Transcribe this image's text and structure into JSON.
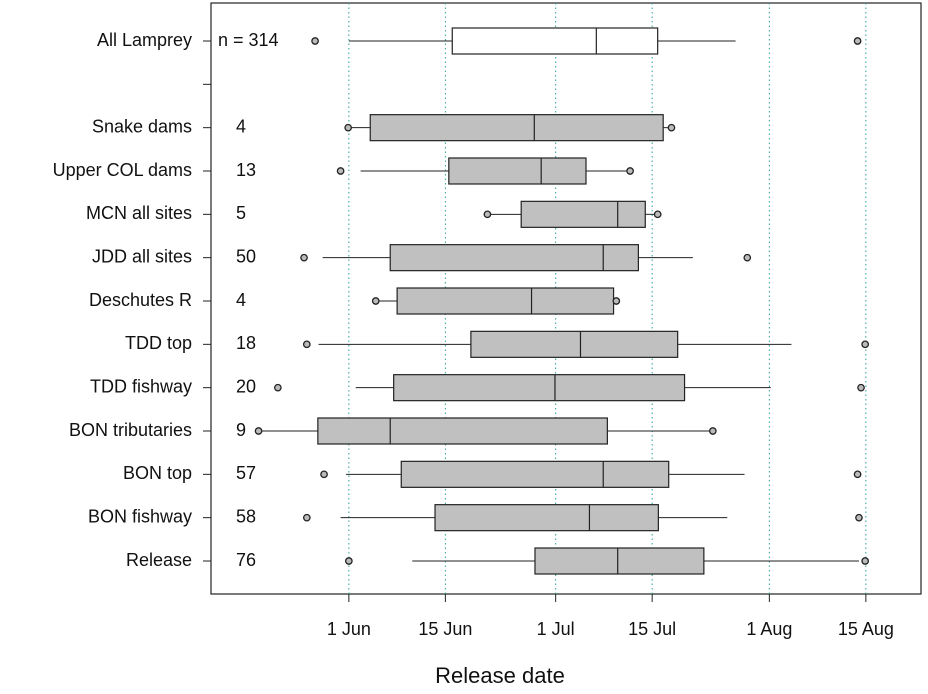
{
  "chart_data": {
    "type": "boxplot",
    "categories": [
      "All Lamprey",
      null,
      "Snake dams",
      "Upper COL dams",
      "MCN all sites",
      "JDD all sites",
      "Deschutes R",
      "TDD top",
      "TDD fishway",
      "BON tributaries",
      "BON top",
      "BON fishway",
      "Release"
    ],
    "counts": [
      314,
      null,
      4,
      13,
      5,
      50,
      4,
      18,
      20,
      9,
      57,
      58,
      76
    ],
    "count_labels": [
      "n = 314",
      null,
      "4",
      "13",
      "5",
      "50",
      "4",
      "18",
      "20",
      "9",
      "57",
      "58",
      "76"
    ],
    "box_colors": [
      "#ffffff",
      null,
      "#c0c0c0",
      "#c0c0c0",
      "#c0c0c0",
      "#c0c0c0",
      "#c0c0c0",
      "#c0c0c0",
      "#c0c0c0",
      "#c0c0c0",
      "#c0c0c0",
      "#c0c0c0",
      "#c0c0c0"
    ],
    "min": [
      147.1,
      null,
      151.9,
      150.8,
      172.1,
      145.5,
      155.9,
      145.9,
      141.7,
      138.9,
      148.4,
      145.9,
      152.0
    ],
    "whisker_low": [
      152.0,
      null,
      151.9,
      153.7,
      172.1,
      148.2,
      155.9,
      147.6,
      153.0,
      138.9,
      151.6,
      150.8,
      161.2
    ],
    "q1": [
      167.0,
      null,
      155.1,
      166.5,
      177.0,
      158.0,
      159.0,
      169.7,
      158.5,
      147.5,
      159.6,
      164.5,
      179.0
    ],
    "median": [
      187.9,
      null,
      178.9,
      179.9,
      191.0,
      188.9,
      178.5,
      185.6,
      181.9,
      158.0,
      188.9,
      186.9,
      191.0
    ],
    "q3": [
      196.8,
      null,
      197.6,
      186.4,
      195.0,
      194.0,
      190.4,
      199.7,
      200.7,
      189.5,
      198.4,
      196.9,
      203.5
    ],
    "whisker_high": [
      208.1,
      null,
      198.8,
      192.8,
      196.8,
      201.9,
      190.8,
      216.2,
      213.2,
      204.8,
      209.4,
      206.9,
      226.0
    ],
    "max": [
      225.8,
      null,
      198.8,
      192.8,
      196.8,
      209.8,
      190.8,
      226.9,
      226.3,
      204.8,
      225.8,
      226.0,
      226.9
    ],
    "xlabel": "Release date",
    "xlim": [
      132,
      235
    ],
    "xticks": [
      {
        "value": 152,
        "label": "1 Jun"
      },
      {
        "value": 166,
        "label": "15 Jun"
      },
      {
        "value": 182,
        "label": "1 Jul"
      },
      {
        "value": 196,
        "label": "15 Jul"
      },
      {
        "value": 213,
        "label": "1 Aug"
      },
      {
        "value": 227,
        "label": "15 Aug"
      }
    ],
    "grid": true,
    "grid_color": "#2aa198"
  }
}
